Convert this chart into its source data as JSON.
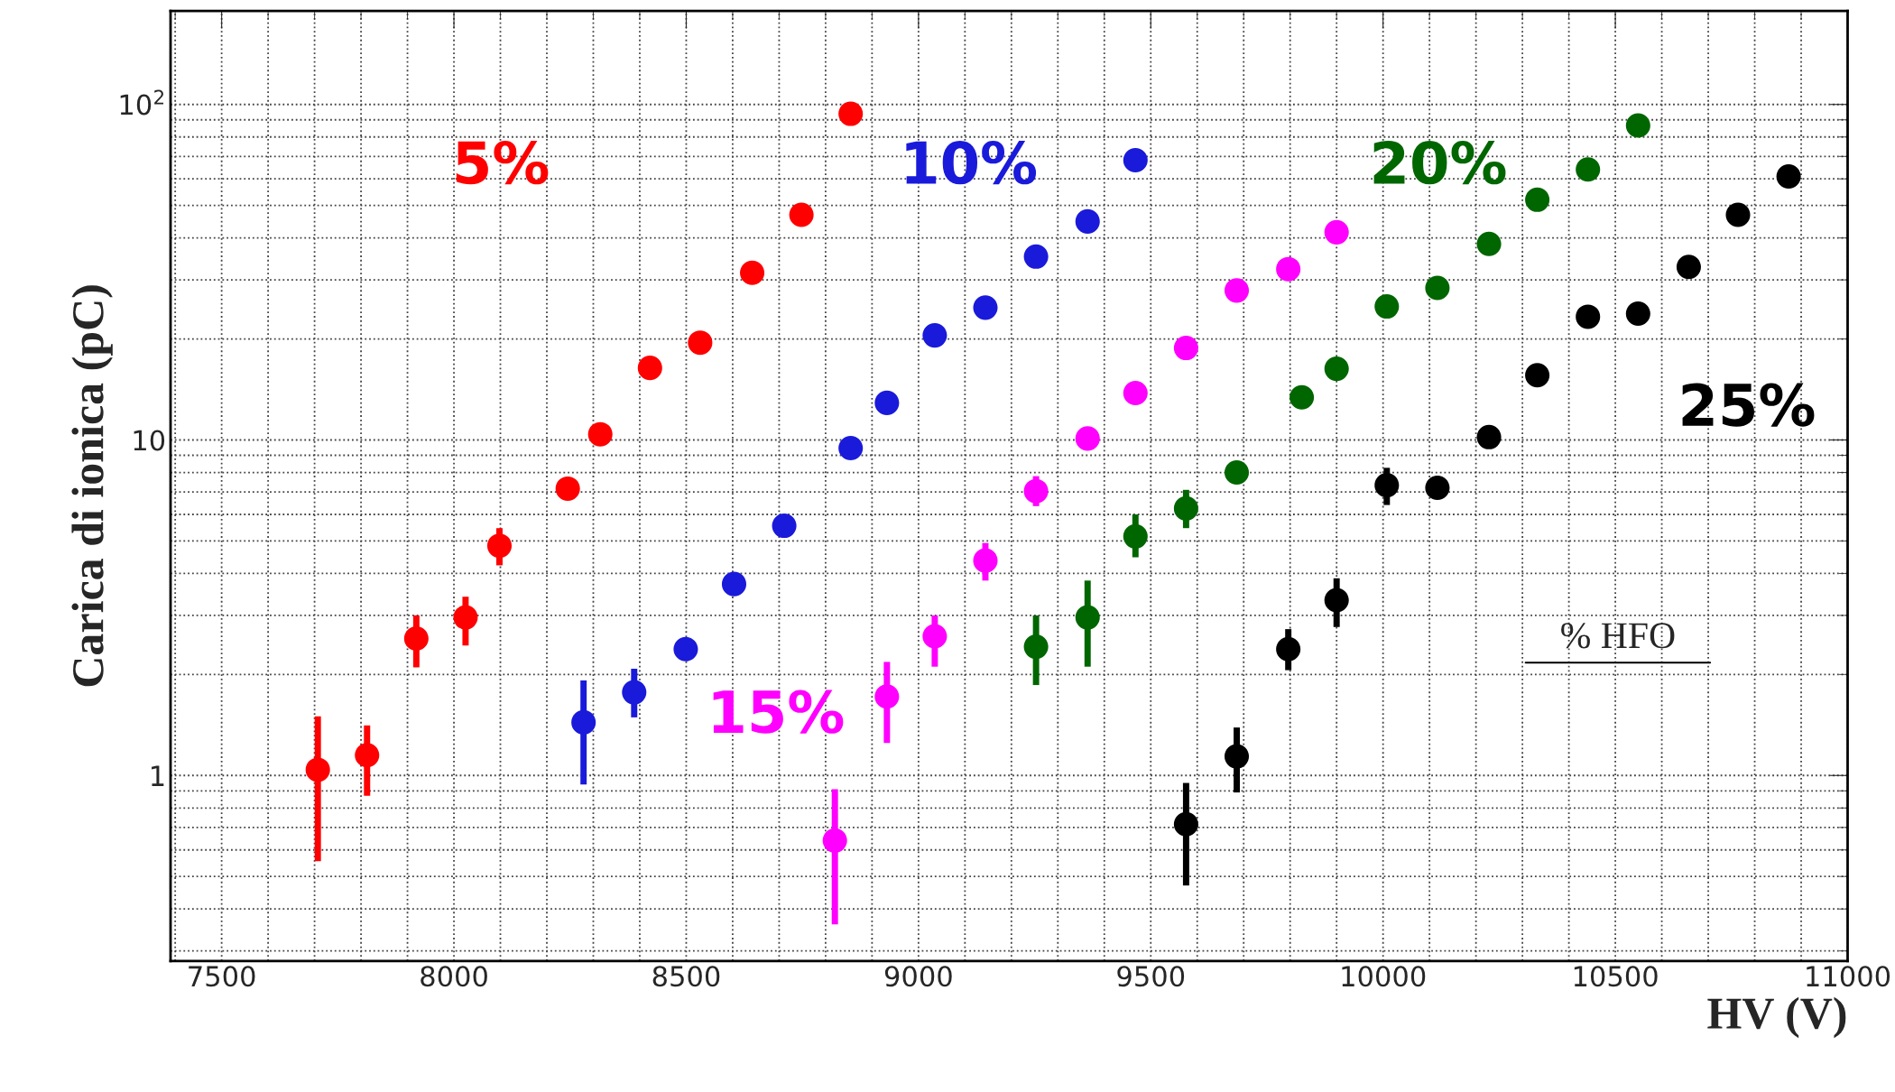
{
  "chart_data": {
    "type": "scatter",
    "xlabel": "HV (V)",
    "ylabel": "Carica di ionica (pC)",
    "log": "y",
    "grid": true,
    "legend": false,
    "marker": "circle",
    "xlim": [
      7390,
      11000
    ],
    "xticks": [
      7500,
      8000,
      8500,
      9000,
      9500,
      10000,
      10500,
      11000
    ],
    "ylim": [
      0.28,
      190
    ],
    "yticks": [
      {
        "value": 1,
        "label": "1"
      },
      {
        "value": 10,
        "label": "10"
      },
      {
        "value": 100,
        "label": "10$^{2}$"
      }
    ],
    "annotations": [
      "% HFO"
    ],
    "series": [
      {
        "name": "5%",
        "color": "#ff0000",
        "x": [
          7707,
          7813,
          7919,
          8025,
          8098,
          8245,
          8315,
          8422,
          8530,
          8642,
          8748,
          8854
        ],
        "values": [
          1.04,
          1.15,
          2.56,
          2.96,
          4.84,
          7.16,
          10.4,
          16.4,
          19.5,
          31.5,
          46.9,
          93.8
        ],
        "errors": [
          [
            0.555,
            1.5
          ],
          [
            0.87,
            1.41
          ],
          [
            2.1,
            3.0
          ],
          [
            2.44,
            3.41
          ],
          [
            4.23,
            5.46
          ],
          null,
          null,
          null,
          null,
          null,
          null,
          null
        ]
      },
      {
        "name": "10%",
        "color": "#1a1adb",
        "x": [
          8279,
          8388,
          8499,
          8603,
          8711,
          8854,
          8932,
          9035,
          9144,
          9253,
          9364,
          9467
        ],
        "values": [
          1.44,
          1.77,
          2.38,
          3.72,
          5.55,
          9.46,
          12.9,
          20.5,
          24.8,
          35.2,
          44.8,
          68.2
        ],
        "errors": [
          [
            0.94,
            1.92
          ],
          [
            1.49,
            2.08
          ],
          null,
          null,
          null,
          null,
          null,
          null,
          null,
          null,
          null,
          null
        ]
      },
      {
        "name": "15%",
        "color": "#ff00ff",
        "x": [
          8820,
          8932,
          9035,
          9144,
          9253,
          9364,
          9467,
          9576,
          9685,
          9796,
          9900
        ],
        "values": [
          0.64,
          1.72,
          2.6,
          4.37,
          7.04,
          10.1,
          13.8,
          18.8,
          27.9,
          32.3,
          41.6
        ],
        "errors": [
          [
            0.36,
            0.91
          ],
          [
            1.25,
            2.18
          ],
          [
            2.11,
            3.0
          ],
          [
            3.81,
            4.93
          ],
          [
            6.35,
            7.8
          ],
          null,
          null,
          null,
          null,
          null,
          null
        ]
      },
      {
        "name": "20%",
        "color": "#006600",
        "x": [
          9253,
          9364,
          9467,
          9576,
          9685,
          9825,
          9900,
          10008,
          10117,
          10228,
          10332,
          10441,
          10549
        ],
        "values": [
          2.42,
          2.96,
          5.16,
          6.25,
          8.0,
          13.4,
          16.3,
          25.0,
          28.4,
          38.4,
          52.0,
          64.0,
          86.6
        ],
        "errors": [
          [
            1.86,
            3.0
          ],
          [
            2.11,
            3.81
          ],
          [
            4.47,
            6.0
          ],
          [
            5.46,
            7.1
          ],
          null,
          null,
          null,
          null,
          null,
          null,
          null,
          null,
          null
        ]
      },
      {
        "name": "25%",
        "color": "#000000",
        "x": [
          9576,
          9685,
          9796,
          9900,
          10008,
          10117,
          10228,
          10332,
          10441,
          10549,
          10658,
          10764,
          10873
        ],
        "values": [
          0.716,
          1.14,
          2.38,
          3.33,
          7.33,
          7.2,
          10.2,
          15.6,
          23.3,
          23.8,
          32.8,
          46.9,
          61.0
        ],
        "errors": [
          [
            0.47,
            0.95
          ],
          [
            0.89,
            1.39
          ],
          [
            2.06,
            2.73
          ],
          [
            2.77,
            3.87
          ],
          [
            6.4,
            8.26
          ],
          null,
          null,
          null,
          null,
          null,
          null,
          null,
          null
        ]
      }
    ]
  }
}
